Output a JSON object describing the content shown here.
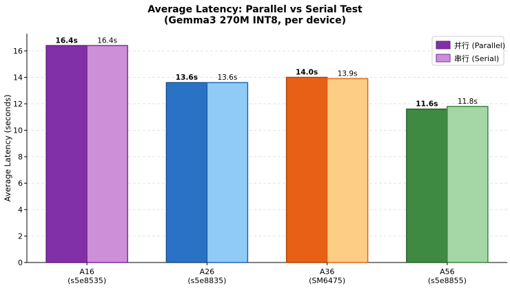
{
  "chart_data": {
    "type": "bar",
    "title": "Average Latency: Parallel vs Serial Test",
    "subtitle": "(Gemma3 270M INT8, per device)",
    "xlabel": "",
    "ylabel": "Average Latency (seconds)",
    "ylim": [
      0,
      17.3
    ],
    "yticks": [
      0,
      2,
      4,
      6,
      8,
      10,
      12,
      14,
      16
    ],
    "grid": "y-dashed",
    "legend_position": "top-right",
    "categories": [
      {
        "name": "A16",
        "sub": "(s5e8535)"
      },
      {
        "name": "A26",
        "sub": "(s5e8835)"
      },
      {
        "name": "A36",
        "sub": "(SM6475)"
      },
      {
        "name": "A56",
        "sub": "(s5e8855)"
      }
    ],
    "series": [
      {
        "name": "并行 (Parallel)",
        "values": [
          16.4,
          13.6,
          14.0,
          11.6
        ],
        "labels": [
          "16.4s",
          "13.6s",
          "14.0s",
          "11.6s"
        ],
        "colors": [
          "#8130a8",
          "#2a72c6",
          "#e85f16",
          "#3f8a42"
        ],
        "edge_colors": [
          "#5e1f80",
          "#1a4f8f",
          "#b34510",
          "#2b6130"
        ],
        "label_bold": true
      },
      {
        "name": "串行 (Serial)",
        "values": [
          16.4,
          13.6,
          13.9,
          11.8
        ],
        "labels": [
          "16.4s",
          "13.6s",
          "13.9s",
          "11.8s"
        ],
        "colors": [
          "#cc8fd8",
          "#90caf7",
          "#fdcc85",
          "#a5d6a6"
        ],
        "edge_colors": [
          "#7b2aa0",
          "#2165b3",
          "#e0640e",
          "#3b8a3f"
        ],
        "label_bold": false
      }
    ],
    "legend": [
      {
        "label": "并行 (Parallel)",
        "color": "#8130a8",
        "edge": "#5e1f80"
      },
      {
        "label": "串行 (Serial)",
        "color": "#cc8fd8",
        "edge": "#7b2aa0"
      }
    ]
  }
}
